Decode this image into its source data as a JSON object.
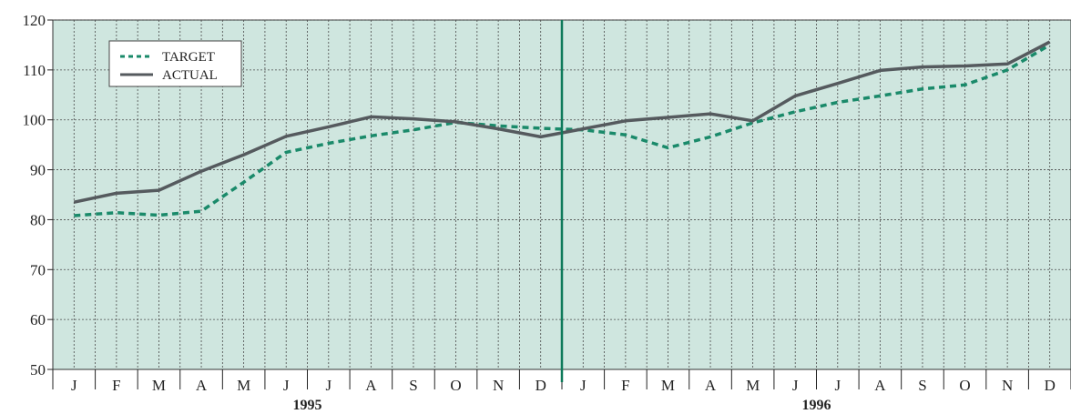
{
  "chart_data": {
    "type": "line",
    "ylim": [
      50,
      120
    ],
    "yticks": [
      50,
      60,
      70,
      80,
      90,
      100,
      110,
      120
    ],
    "x": [
      "J",
      "F",
      "M",
      "A",
      "M",
      "J",
      "J",
      "A",
      "S",
      "O",
      "N",
      "D",
      "J",
      "F",
      "M",
      "A",
      "M",
      "J",
      "J",
      "A",
      "S",
      "O",
      "N",
      "D"
    ],
    "years": [
      {
        "label": "1995",
        "start_index": 0,
        "end_index": 11
      },
      {
        "label": "1996",
        "start_index": 12,
        "end_index": 23
      }
    ],
    "divider_after_index": 11,
    "grid": true,
    "legend_position": "top-left",
    "series": [
      {
        "name": "TARGET",
        "style": "dashed",
        "color": "#1a8a6a",
        "values": [
          80.8,
          81.4,
          80.9,
          81.7,
          87.5,
          93.5,
          95.3,
          96.8,
          98.0,
          99.5,
          98.8,
          98.3,
          98.0,
          97.0,
          94.4,
          96.6,
          99.4,
          101.6,
          103.5,
          104.8,
          106.2,
          107.0,
          110.0,
          115.0
        ]
      },
      {
        "name": "ACTUAL",
        "style": "solid",
        "color": "#555a5e",
        "values": [
          83.5,
          85.3,
          85.9,
          89.7,
          93.0,
          96.7,
          98.6,
          100.6,
          100.2,
          99.6,
          98.2,
          96.6,
          98.2,
          99.8,
          100.5,
          101.2,
          99.8,
          104.8,
          107.3,
          109.9,
          110.6,
          110.8,
          111.2,
          115.6
        ]
      }
    ],
    "colors": {
      "plot_background": "#cfe6df",
      "grid": "#4a4a4a",
      "divider": "#0e7a5a"
    }
  }
}
